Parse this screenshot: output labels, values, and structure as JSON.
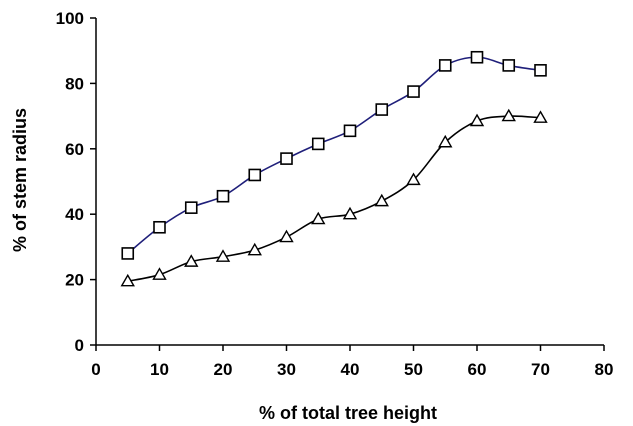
{
  "chart_data": {
    "type": "line",
    "title": "",
    "xlabel": "% of total tree height",
    "ylabel": "% of stem radius",
    "xlim": [
      0,
      80
    ],
    "ylim": [
      0,
      100
    ],
    "xticks": [
      0,
      10,
      20,
      30,
      40,
      50,
      60,
      70,
      80
    ],
    "yticks": [
      0,
      20,
      40,
      60,
      80,
      100
    ],
    "grid": false,
    "legend": "none",
    "series": [
      {
        "marker": "square",
        "color": "#1f1f7a",
        "x": [
          5,
          10,
          15,
          20,
          25,
          30,
          35,
          40,
          45,
          50,
          55,
          60,
          65,
          70
        ],
        "y": [
          28.0,
          36.0,
          42.0,
          45.5,
          52.0,
          57.0,
          61.5,
          65.5,
          72.0,
          77.5,
          85.5,
          88.0,
          85.5,
          84.0
        ]
      },
      {
        "marker": "triangle",
        "color": "#000000",
        "x": [
          5,
          10,
          15,
          20,
          25,
          30,
          35,
          40,
          45,
          50,
          55,
          60,
          65,
          70
        ],
        "y": [
          19.5,
          21.5,
          25.5,
          27.0,
          29.0,
          33.0,
          38.5,
          40.0,
          44.0,
          50.5,
          62.0,
          68.5,
          70.0,
          69.5
        ]
      }
    ]
  }
}
